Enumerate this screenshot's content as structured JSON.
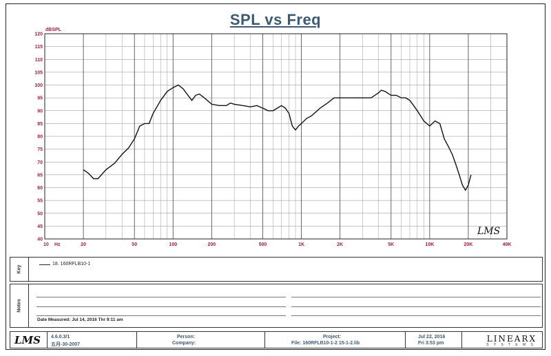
{
  "chart_data": {
    "type": "line",
    "title": "SPL vs Freq",
    "ylabel": "dBSPL",
    "xlabel": "Hz",
    "xscale": "log",
    "xlim": [
      10,
      40000
    ],
    "ylim": [
      40,
      120
    ],
    "grid": true,
    "y_ticks": [
      40,
      45,
      50,
      55,
      60,
      65,
      70,
      75,
      80,
      85,
      90,
      95,
      100,
      105,
      110,
      115,
      120
    ],
    "x_tick_labels": [
      {
        "v": 10,
        "t": "10"
      },
      {
        "v": 20,
        "t": "20"
      },
      {
        "v": 50,
        "t": "50"
      },
      {
        "v": 100,
        "t": "100"
      },
      {
        "v": 200,
        "t": "200"
      },
      {
        "v": 500,
        "t": "500"
      },
      {
        "v": 1000,
        "t": "1K"
      },
      {
        "v": 2000,
        "t": "2K"
      },
      {
        "v": 5000,
        "t": "5K"
      },
      {
        "v": 10000,
        "t": "10K"
      },
      {
        "v": 20000,
        "t": "20K"
      },
      {
        "v": 40000,
        "t": "40K"
      }
    ],
    "series": [
      {
        "legend": "18. 160RFLB10-1",
        "color": "#111111",
        "x": [
          20,
          22,
          24,
          26,
          30,
          35,
          40,
          45,
          50,
          55,
          60,
          65,
          70,
          80,
          90,
          100,
          110,
          120,
          140,
          150,
          160,
          175,
          200,
          230,
          260,
          280,
          300,
          350,
          400,
          450,
          500,
          550,
          600,
          650,
          700,
          750,
          800,
          850,
          900,
          950,
          1000,
          1100,
          1200,
          1400,
          1600,
          1800,
          2000,
          2300,
          2600,
          3000,
          3500,
          4000,
          4200,
          4500,
          5000,
          5500,
          6000,
          6500,
          7000,
          7500,
          8000,
          8500,
          9000,
          10000,
          11000,
          12000,
          13000,
          14000,
          15000,
          16000,
          17000,
          18000,
          19000,
          20000,
          21000
        ],
        "y": [
          67,
          65.5,
          63.5,
          63.5,
          67,
          69.5,
          73,
          75.5,
          79,
          84,
          85,
          85,
          89,
          94,
          97.5,
          99,
          100,
          98.5,
          94,
          96,
          96.5,
          95,
          92.5,
          92,
          92,
          93,
          92.5,
          92,
          91.5,
          92,
          91,
          90,
          90,
          91,
          92,
          91,
          89,
          84,
          82.5,
          84,
          85,
          87,
          88,
          91,
          93,
          95,
          95,
          95,
          95,
          95,
          95,
          97,
          98,
          97.5,
          96,
          96,
          95,
          95,
          94,
          92,
          90,
          88,
          86,
          84,
          86,
          85,
          79,
          76,
          73,
          69,
          65,
          61,
          59,
          61,
          65
        ]
      }
    ]
  },
  "unit_label_y": "dBSPL",
  "unit_label_x": "Hz",
  "lms_mark": "LMS",
  "legend_panel": {
    "tab": "Key",
    "entry": "18. 160RFLB10-1"
  },
  "notes_panel": {
    "tab": "Notes",
    "date_measured": "Date Measured: Jul 14, 2016  Thr  9:11 am"
  },
  "footer": {
    "logo": "LMS",
    "version": "4.6.0.3/1",
    "version_date": "五月-30-2007",
    "person_label": "Person:",
    "company_label": "Company:",
    "project_label": "Project:",
    "file_label": "File: 160RFLB10-1-2 15-1-2.lib",
    "date": "Jul 22, 2016",
    "time": "Fri  3:53 pm",
    "brand": "LINEARX",
    "brand_sub": "S Y S T E M S"
  }
}
